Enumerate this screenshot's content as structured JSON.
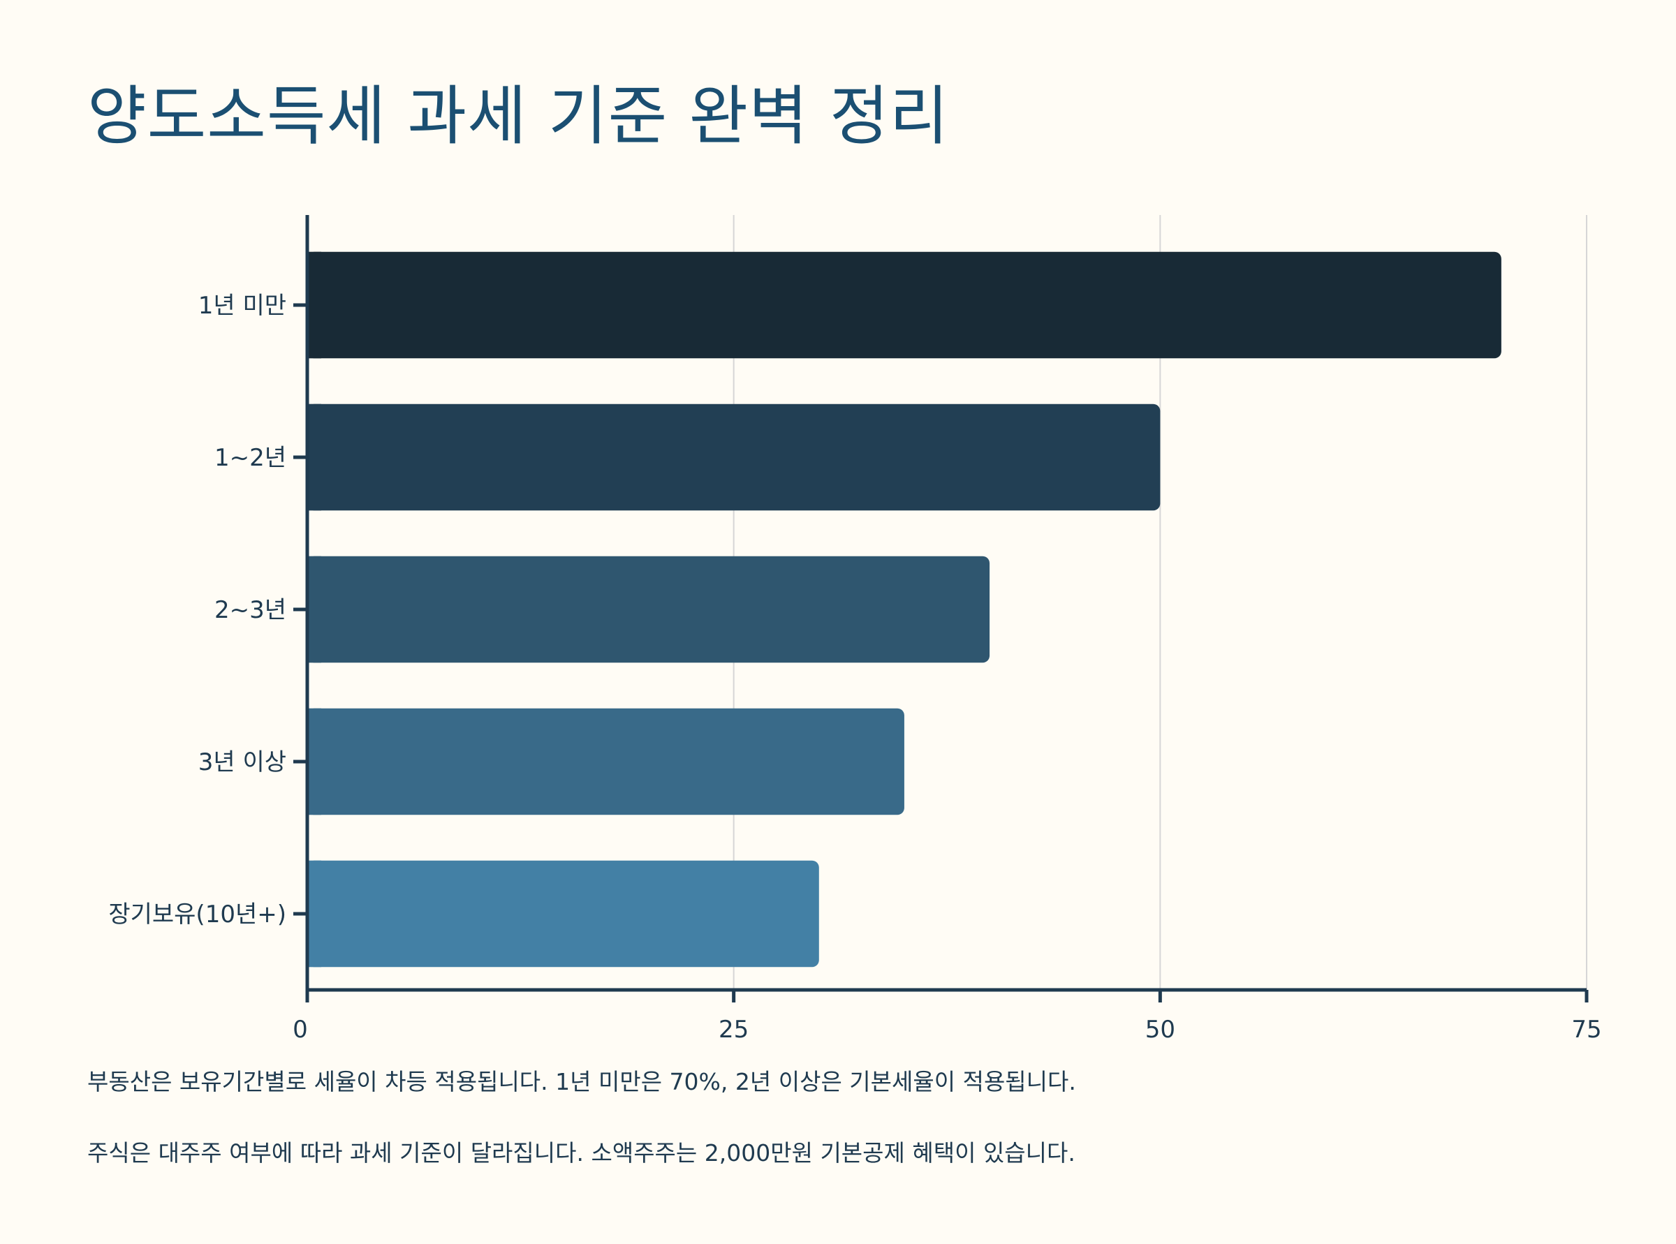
{
  "title": "양도소득세 과세 기준 완벽 정리",
  "chart_data": {
    "type": "bar",
    "orientation": "horizontal",
    "categories": [
      "1년 미만",
      "1~2년",
      "2~3년",
      "3년 이상",
      "장기보유(10년+)"
    ],
    "values": [
      70,
      50,
      40,
      35,
      30
    ],
    "xlim": [
      0,
      75
    ],
    "x_ticks": [
      0,
      25,
      50,
      75
    ],
    "grid": "vertical",
    "xlabel": "",
    "ylabel": "",
    "colors": [
      "#182a36",
      "#223f54",
      "#2f566f",
      "#396a89",
      "#4380a5"
    ]
  },
  "notes": [
    "부동산은 보유기간별로 세율이 차등 적용됩니다. 1년 미만은 70%, 2년 이상은 기본세율이 적용됩니다.",
    "주식은 대주주 여부에 따라 과세 기준이 달라집니다. 소액주주는 2,000만원 기본공제 혜택이 있습니다."
  ]
}
